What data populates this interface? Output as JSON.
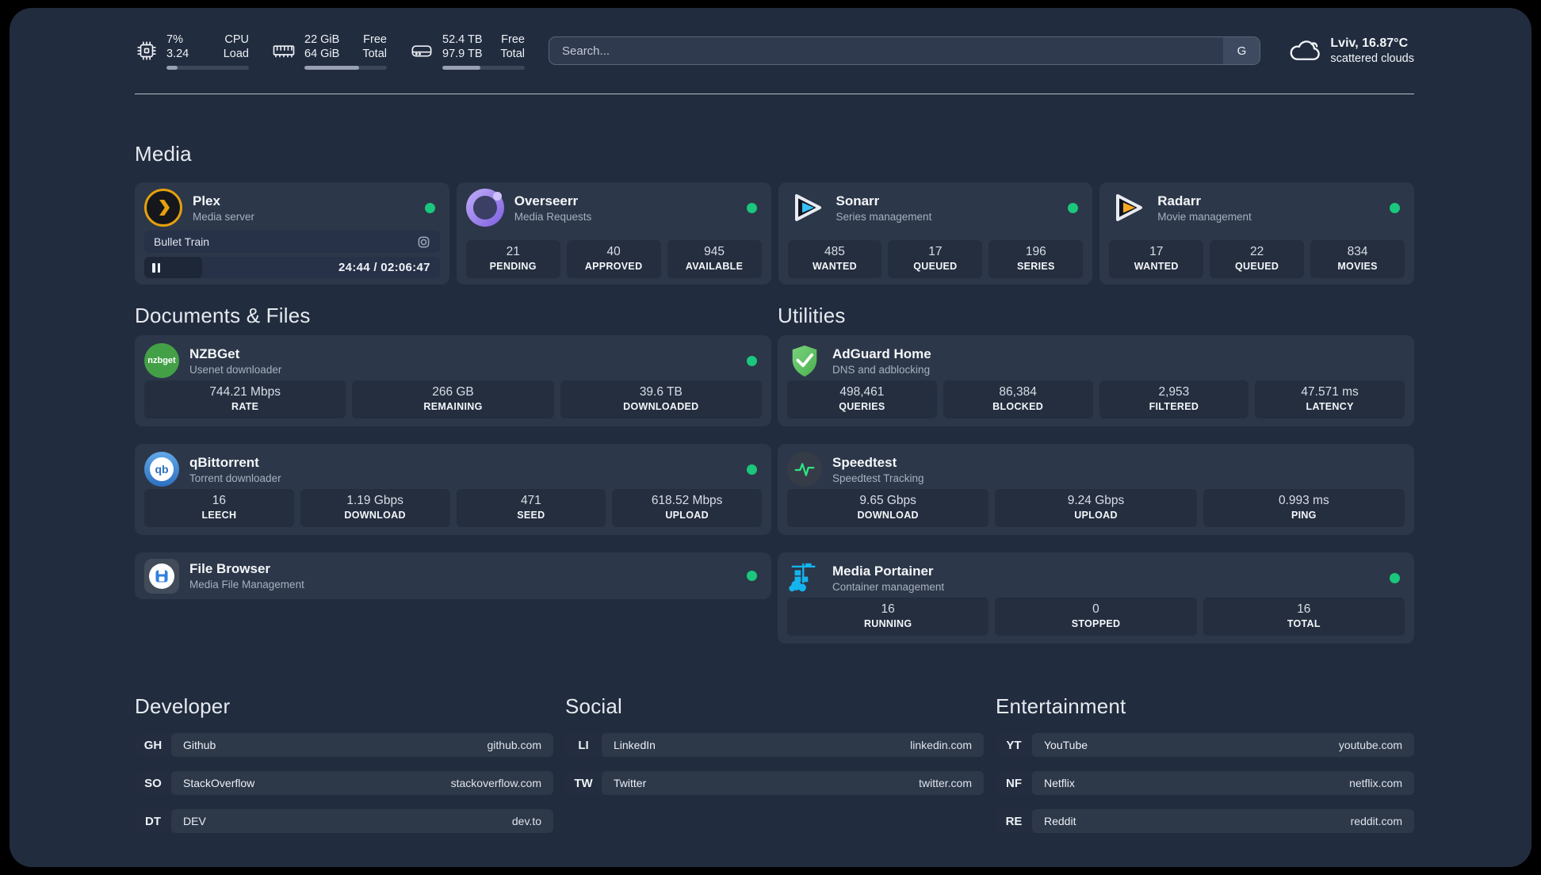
{
  "topbar": {
    "stats": [
      {
        "name": "cpu",
        "value_top": "7%",
        "value_bottom": "3.24",
        "label_top": "CPU",
        "label_bottom": "Load",
        "progress_pct": 13
      },
      {
        "name": "memory",
        "value_top": "22 GiB",
        "value_bottom": "64 GiB",
        "label_top": "Free",
        "label_bottom": "Total",
        "progress_pct": 66
      },
      {
        "name": "disk",
        "value_top": "52.4 TB",
        "value_bottom": "97.9 TB",
        "label_top": "Free",
        "label_bottom": "Total",
        "progress_pct": 46
      }
    ],
    "search_placeholder": "Search...",
    "search_engine": "G",
    "weather": {
      "title": "Lviv, 16.87°C",
      "subtitle": "scattered clouds"
    }
  },
  "media": {
    "header": "Media",
    "plex": {
      "title": "Plex",
      "subtitle": "Media server",
      "now_playing": "Bullet Train",
      "time": "24:44 / 02:06:47",
      "progress_pct": 19.5
    },
    "overseerr": {
      "title": "Overseerr",
      "subtitle": "Media Requests",
      "stats": [
        {
          "value": "21",
          "label": "PENDING"
        },
        {
          "value": "40",
          "label": "APPROVED"
        },
        {
          "value": "945",
          "label": "AVAILABLE"
        }
      ]
    },
    "sonarr": {
      "title": "Sonarr",
      "subtitle": "Series management",
      "stats": [
        {
          "value": "485",
          "label": "WANTED"
        },
        {
          "value": "17",
          "label": "QUEUED"
        },
        {
          "value": "196",
          "label": "SERIES"
        }
      ]
    },
    "radarr": {
      "title": "Radarr",
      "subtitle": "Movie management",
      "stats": [
        {
          "value": "17",
          "label": "WANTED"
        },
        {
          "value": "22",
          "label": "QUEUED"
        },
        {
          "value": "834",
          "label": "MOVIES"
        }
      ]
    }
  },
  "documents": {
    "header": "Documents & Files",
    "nzbget": {
      "title": "NZBGet",
      "subtitle": "Usenet downloader",
      "icon_label": "nzbget",
      "stats": [
        {
          "value": "744.21 Mbps",
          "label": "RATE"
        },
        {
          "value": "266 GB",
          "label": "REMAINING"
        },
        {
          "value": "39.6 TB",
          "label": "DOWNLOADED"
        }
      ]
    },
    "qbittorrent": {
      "title": "qBittorrent",
      "subtitle": "Torrent downloader",
      "icon_label": "qb",
      "stats": [
        {
          "value": "16",
          "label": "LEECH"
        },
        {
          "value": "1.19 Gbps",
          "label": "DOWNLOAD"
        },
        {
          "value": "471",
          "label": "SEED"
        },
        {
          "value": "618.52 Mbps",
          "label": "UPLOAD"
        }
      ]
    },
    "filebrowser": {
      "title": "File Browser",
      "subtitle": "Media File Management"
    }
  },
  "utilities": {
    "header": "Utilities",
    "adguard": {
      "title": "AdGuard Home",
      "subtitle": "DNS and adblocking",
      "stats": [
        {
          "value": "498,461",
          "label": "QUERIES"
        },
        {
          "value": "86,384",
          "label": "BLOCKED"
        },
        {
          "value": "2,953",
          "label": "FILTERED"
        },
        {
          "value": "47.571 ms",
          "label": "LATENCY"
        }
      ]
    },
    "speedtest": {
      "title": "Speedtest",
      "subtitle": "Speedtest Tracking",
      "stats": [
        {
          "value": "9.65 Gbps",
          "label": "DOWNLOAD"
        },
        {
          "value": "9.24 Gbps",
          "label": "UPLOAD"
        },
        {
          "value": "0.993 ms",
          "label": "PING"
        }
      ]
    },
    "portainer": {
      "title": "Media Portainer",
      "subtitle": "Container management",
      "stats": [
        {
          "value": "16",
          "label": "RUNNING"
        },
        {
          "value": "0",
          "label": "STOPPED"
        },
        {
          "value": "16",
          "label": "TOTAL"
        }
      ]
    }
  },
  "links": {
    "developer": {
      "header": "Developer",
      "items": [
        {
          "abbr": "GH",
          "name": "Github",
          "url": "github.com"
        },
        {
          "abbr": "SO",
          "name": "StackOverflow",
          "url": "stackoverflow.com"
        },
        {
          "abbr": "DT",
          "name": "DEV",
          "url": "dev.to"
        }
      ]
    },
    "social": {
      "header": "Social",
      "items": [
        {
          "abbr": "LI",
          "name": "LinkedIn",
          "url": "linkedin.com"
        },
        {
          "abbr": "TW",
          "name": "Twitter",
          "url": "twitter.com"
        }
      ]
    },
    "entertainment": {
      "header": "Entertainment",
      "items": [
        {
          "abbr": "YT",
          "name": "YouTube",
          "url": "youtube.com"
        },
        {
          "abbr": "NF",
          "name": "Netflix",
          "url": "netflix.com"
        },
        {
          "abbr": "RE",
          "name": "Reddit",
          "url": "reddit.com"
        }
      ]
    }
  },
  "colors": {
    "status_online": "#1ac77d",
    "plex_gold": "#e5a00d",
    "sonarr_blue": "#36c0f3",
    "radarr_orange": "#f7a824"
  }
}
